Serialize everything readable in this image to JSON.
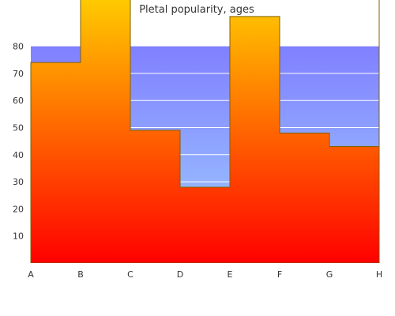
{
  "chart_data": {
    "type": "area",
    "title": "Pletal popularity, ages",
    "xlabel": "",
    "ylabel": "",
    "categories": [
      "A",
      "B",
      "C",
      "D",
      "E",
      "F",
      "G",
      "H"
    ],
    "series": [
      {
        "values": [
          74,
          100,
          49,
          28,
          91,
          48,
          43,
          100
        ],
        "style": "step"
      }
    ],
    "y_ticks": [
      10,
      20,
      30,
      40,
      50,
      60,
      70,
      80
    ],
    "ylim": [
      0,
      80
    ],
    "grid": true,
    "legend": "none",
    "colors": {
      "background_top": "#8080ff",
      "background_bottom": "#a0d0ff",
      "fill_top": "#ffd000",
      "fill_bottom": "#ff0000",
      "stroke": "#806000",
      "grid": "#ffffff",
      "axis": "#333333"
    }
  }
}
